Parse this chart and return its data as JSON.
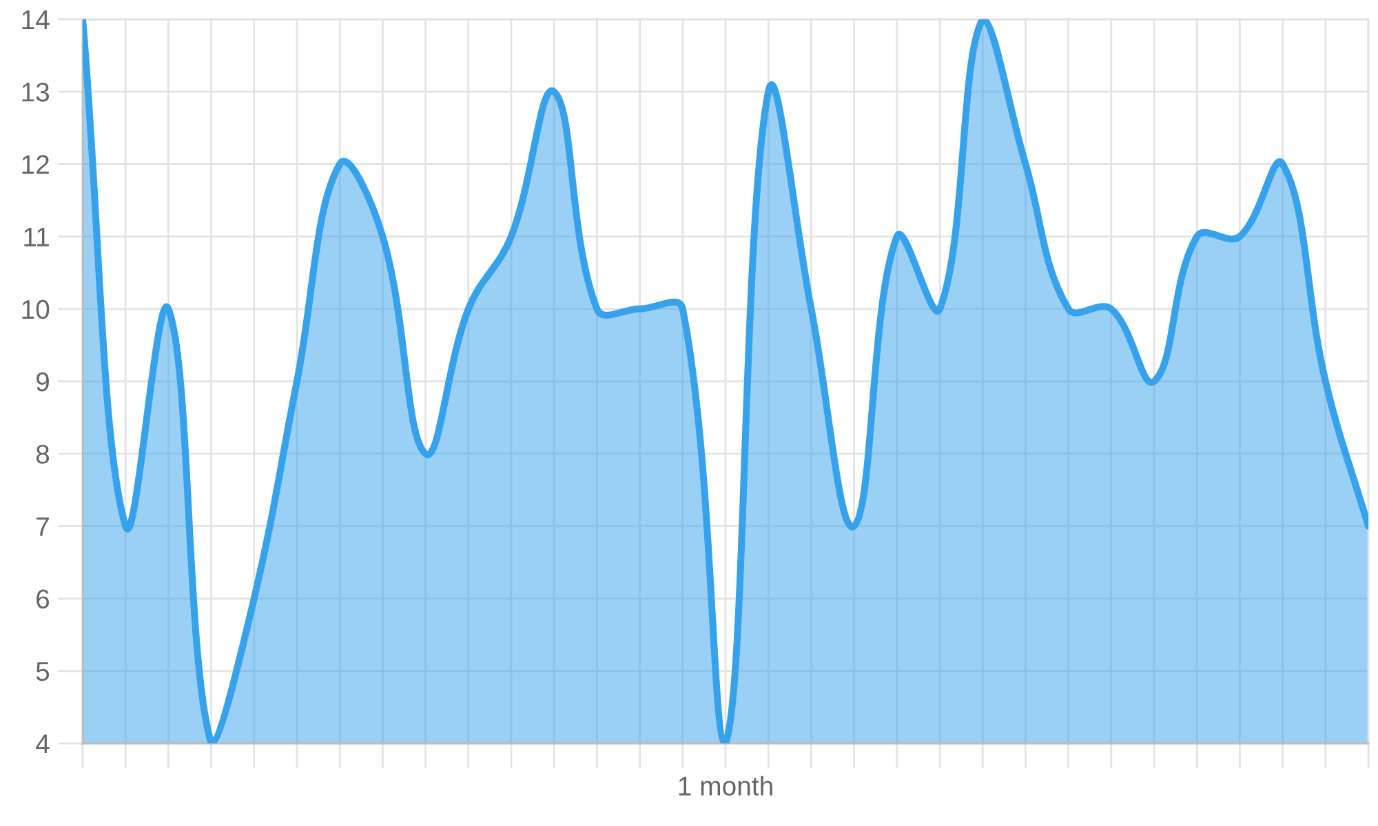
{
  "chart_data": {
    "type": "area",
    "xlabel": "1 month",
    "categories": [
      null,
      null,
      null,
      null,
      null,
      null,
      null,
      null,
      null,
      null,
      null,
      null,
      null,
      null,
      null,
      null,
      null,
      null,
      null,
      null,
      null,
      null,
      null,
      null,
      null,
      null,
      null,
      null,
      null,
      null,
      null
    ],
    "series": [
      {
        "color": "#36a2eb",
        "values": [
          14,
          7,
          10,
          4,
          6,
          9,
          12,
          11,
          8,
          10,
          11,
          13,
          10,
          10,
          10,
          4,
          13,
          10,
          7,
          11,
          10,
          14,
          12,
          10,
          10,
          9,
          11,
          11,
          12,
          9,
          7
        ]
      }
    ],
    "ylim": [
      4,
      14
    ],
    "yticks": [
      4,
      5,
      6,
      7,
      8,
      9,
      10,
      11,
      12,
      13,
      14
    ],
    "grid": true,
    "tick_labels": "y"
  }
}
